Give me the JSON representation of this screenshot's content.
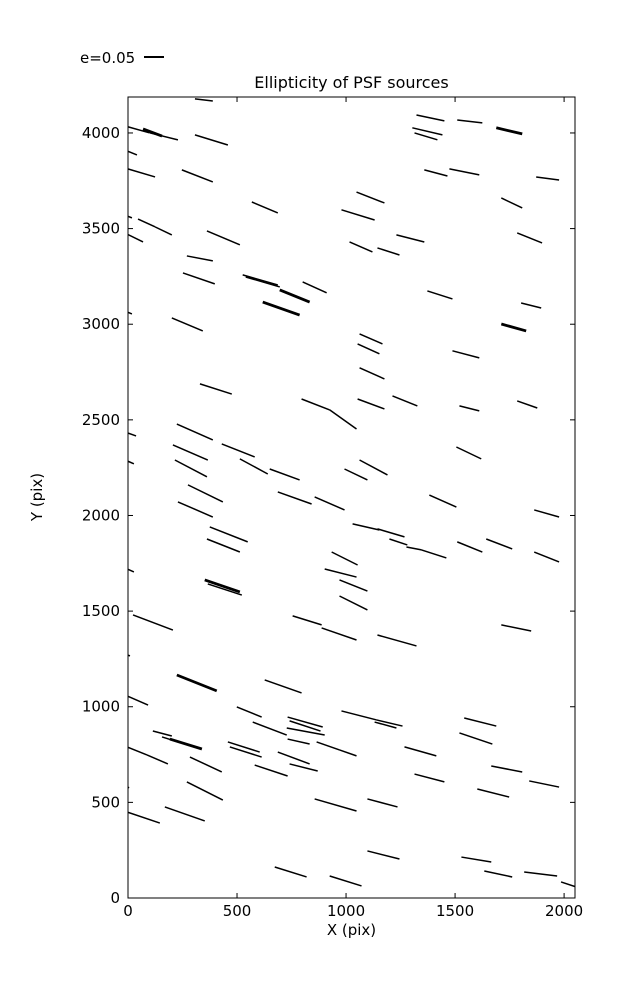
{
  "title": "Ellipticity of PSF sources",
  "legend": {
    "label": "e=0.05"
  },
  "chart_data": {
    "type": "scatter",
    "mark": "line-segment-whiskers",
    "title": "Ellipticity of PSF sources",
    "xlabel": "X (pix)",
    "ylabel": "Y (pix)",
    "xlim": [
      0,
      2050
    ],
    "ylim": [
      0,
      4188
    ],
    "xticks": [
      0,
      500,
      1000,
      1500,
      2000
    ],
    "yticks": [
      0,
      500,
      1000,
      1500,
      2000,
      2500,
      3000,
      3500,
      4000
    ],
    "grid": false,
    "legend": {
      "label": "e=0.05",
      "position": "top-left-outside-axes"
    },
    "line_color": "#000000",
    "segments": [
      [
        307,
        4178,
        389,
        4167,
        1
      ],
      [
        -15,
        4037,
        100,
        4000,
        1
      ],
      [
        69,
        4021,
        156,
        3984,
        2
      ],
      [
        101,
        4000,
        229,
        3964,
        1
      ],
      [
        307,
        3990,
        458,
        3937,
        1
      ],
      [
        -15,
        3911,
        41,
        3885,
        1
      ],
      [
        -15,
        3817,
        124,
        3770,
        1
      ],
      [
        247,
        3807,
        389,
        3744,
        1
      ],
      [
        568,
        3639,
        687,
        3582,
        1
      ],
      [
        46,
        3550,
        124,
        3509,
        1
      ],
      [
        124,
        3509,
        201,
        3467,
        1
      ],
      [
        -15,
        3571,
        18,
        3556,
        1
      ],
      [
        -15,
        3477,
        69,
        3430,
        1
      ],
      [
        362,
        3488,
        513,
        3415,
        1
      ],
      [
        1323,
        4094,
        1451,
        4063,
        1
      ],
      [
        1510,
        4068,
        1625,
        4053,
        1
      ],
      [
        1304,
        4027,
        1442,
        3990,
        1
      ],
      [
        1314,
        4000,
        1419,
        3964,
        1
      ],
      [
        1689,
        4027,
        1808,
        3995,
        2
      ],
      [
        1359,
        3807,
        1465,
        3775,
        1
      ],
      [
        1474,
        3812,
        1611,
        3781,
        1
      ],
      [
        1872,
        3770,
        1977,
        3754,
        1
      ],
      [
        1048,
        3691,
        1176,
        3634,
        1
      ],
      [
        979,
        3598,
        1131,
        3545,
        1
      ],
      [
        1712,
        3660,
        1808,
        3608,
        1
      ],
      [
        1231,
        3467,
        1359,
        3430,
        1
      ],
      [
        1785,
        3477,
        1899,
        3425,
        1
      ],
      [
        1016,
        3430,
        1121,
        3378,
        1
      ],
      [
        1144,
        3399,
        1245,
        3362,
        1
      ],
      [
        270,
        3357,
        389,
        3331,
        1
      ],
      [
        252,
        3268,
        398,
        3211,
        1
      ],
      [
        526,
        3258,
        687,
        3205,
        1
      ],
      [
        540,
        3247,
        696,
        3195,
        1
      ],
      [
        801,
        3221,
        911,
        3164,
        1
      ],
      [
        696,
        3179,
        833,
        3116,
        2
      ],
      [
        618,
        3116,
        787,
        3048,
        2
      ],
      [
        201,
        3033,
        343,
        2965,
        1
      ],
      [
        -15,
        3069,
        18,
        3054,
        1
      ],
      [
        330,
        2688,
        476,
        2635,
        1
      ],
      [
        796,
        2609,
        925,
        2552,
        1
      ],
      [
        925,
        2552,
        1048,
        2452,
        1
      ],
      [
        1373,
        3174,
        1488,
        3132,
        1
      ],
      [
        1803,
        3111,
        1895,
        3085,
        1
      ],
      [
        1712,
        3001,
        1826,
        2965,
        2
      ],
      [
        1062,
        2949,
        1167,
        2897,
        1
      ],
      [
        1053,
        2897,
        1153,
        2845,
        1
      ],
      [
        1488,
        2861,
        1611,
        2824,
        1
      ],
      [
        1062,
        2772,
        1176,
        2714,
        1
      ],
      [
        1213,
        2625,
        1327,
        2573,
        1
      ],
      [
        1053,
        2609,
        1176,
        2557,
        1
      ],
      [
        1520,
        2573,
        1611,
        2547,
        1
      ],
      [
        1785,
        2599,
        1877,
        2562,
        1
      ],
      [
        224,
        2478,
        389,
        2395,
        1
      ],
      [
        206,
        2369,
        366,
        2290,
        1
      ],
      [
        215,
        2290,
        362,
        2202,
        1
      ],
      [
        430,
        2374,
        581,
        2306,
        1
      ],
      [
        513,
        2296,
        641,
        2217,
        1
      ],
      [
        650,
        2243,
        787,
        2186,
        1
      ],
      [
        687,
        2123,
        842,
        2060,
        1
      ],
      [
        856,
        2097,
        993,
        2029,
        1
      ],
      [
        275,
        2160,
        435,
        2071,
        1
      ],
      [
        229,
        2071,
        389,
        1992,
        1
      ],
      [
        375,
        1940,
        549,
        1862,
        1
      ],
      [
        362,
        1877,
        513,
        1809,
        1
      ],
      [
        934,
        1809,
        1053,
        1741,
        1
      ],
      [
        902,
        1720,
        1048,
        1678,
        1
      ],
      [
        1062,
        2290,
        1190,
        2212,
        1
      ],
      [
        993,
        2243,
        1098,
        2186,
        1
      ],
      [
        1506,
        2358,
        1620,
        2296,
        1
      ],
      [
        1382,
        2107,
        1506,
        2044,
        1
      ],
      [
        1863,
        2029,
        1977,
        1992,
        1
      ],
      [
        1030,
        1956,
        1153,
        1924,
        1
      ],
      [
        1144,
        1930,
        1268,
        1888,
        1
      ],
      [
        1199,
        1877,
        1281,
        1846,
        1
      ],
      [
        1277,
        1835,
        1346,
        1820,
        1
      ],
      [
        1346,
        1820,
        1460,
        1778,
        1
      ],
      [
        1510,
        1862,
        1625,
        1809,
        1
      ],
      [
        1643,
        1877,
        1762,
        1825,
        1
      ],
      [
        1863,
        1809,
        1977,
        1757,
        1
      ],
      [
        -15,
        2437,
        37,
        2416,
        1
      ],
      [
        -15,
        2291,
        27,
        2270,
        1
      ],
      [
        -15,
        1726,
        27,
        1705,
        1
      ],
      [
        352,
        1663,
        513,
        1600,
        2
      ],
      [
        366,
        1642,
        522,
        1584,
        1
      ],
      [
        23,
        1480,
        206,
        1401,
        1
      ],
      [
        755,
        1475,
        888,
        1428,
        1
      ],
      [
        888,
        1412,
        1048,
        1349,
        1
      ],
      [
        970,
        1663,
        1098,
        1605,
        1
      ],
      [
        970,
        1579,
        1098,
        1506,
        1
      ],
      [
        224,
        1166,
        407,
        1083,
        2
      ],
      [
        627,
        1140,
        796,
        1072,
        1
      ],
      [
        -15,
        1062,
        92,
        1009,
        1
      ],
      [
        499,
        999,
        613,
        946,
        1
      ],
      [
        732,
        946,
        893,
        894,
        1
      ],
      [
        741,
        926,
        883,
        873,
        1
      ],
      [
        572,
        920,
        728,
        852,
        1
      ],
      [
        728,
        889,
        902,
        852,
        1
      ],
      [
        114,
        873,
        201,
        847,
        1
      ],
      [
        1144,
        1375,
        1323,
        1318,
        1
      ],
      [
        1712,
        1428,
        1849,
        1396,
        1
      ],
      [
        979,
        978,
        1140,
        931,
        1
      ],
      [
        1140,
        931,
        1259,
        899,
        1
      ],
      [
        1131,
        920,
        1231,
        889,
        1
      ],
      [
        1542,
        941,
        1689,
        899,
        1
      ],
      [
        1520,
        863,
        1671,
        805,
        1
      ],
      [
        156,
        842,
        261,
        805,
        1
      ],
      [
        192,
        831,
        339,
        779,
        2
      ],
      [
        -15,
        795,
        87,
        748,
        1
      ],
      [
        87,
        748,
        183,
        701,
        1
      ],
      [
        284,
        737,
        430,
        659,
        1
      ],
      [
        458,
        816,
        604,
        763,
        1
      ],
      [
        467,
        790,
        613,
        737,
        1
      ],
      [
        581,
        695,
        732,
        638,
        1
      ],
      [
        687,
        763,
        833,
        701,
        1
      ],
      [
        741,
        701,
        870,
        664,
        1
      ],
      [
        732,
        831,
        833,
        805,
        1
      ],
      [
        865,
        816,
        970,
        774,
        1
      ],
      [
        970,
        774,
        1048,
        743,
        1
      ],
      [
        270,
        607,
        435,
        512,
        1
      ],
      [
        856,
        518,
        1048,
        455,
        1
      ],
      [
        169,
        476,
        352,
        403,
        1
      ],
      [
        -5,
        450,
        146,
        392,
        1
      ],
      [
        673,
        162,
        819,
        110,
        1
      ],
      [
        925,
        115,
        1071,
        63,
        1
      ],
      [
        1268,
        790,
        1414,
        743,
        1
      ],
      [
        1666,
        690,
        1808,
        659,
        1
      ],
      [
        1314,
        648,
        1451,
        607,
        1
      ],
      [
        1840,
        612,
        1977,
        580,
        1
      ],
      [
        1602,
        570,
        1748,
        528,
        1
      ],
      [
        1098,
        518,
        1236,
        476,
        1
      ],
      [
        1098,
        246,
        1245,
        204,
        1
      ],
      [
        1529,
        214,
        1666,
        188,
        1
      ],
      [
        1634,
        141,
        1762,
        110,
        1
      ],
      [
        1817,
        136,
        1968,
        115,
        1
      ],
      [
        1986,
        84,
        2055,
        58,
        1
      ],
      [
        -15,
        1276,
        9,
        1266,
        1
      ],
      [
        -15,
        589,
        5,
        576,
        1
      ]
    ]
  }
}
